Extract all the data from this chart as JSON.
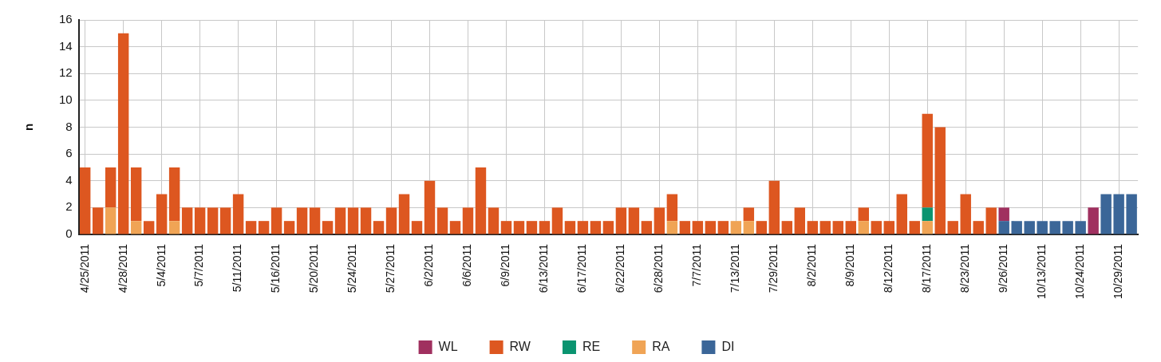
{
  "chart_data": {
    "type": "bar",
    "stacked": true,
    "ylabel": "n",
    "ylim": [
      0,
      16
    ],
    "yticks": [
      0,
      2,
      4,
      6,
      8,
      10,
      12,
      14,
      16
    ],
    "grid": true,
    "legend": "bottom",
    "categories": [
      "4/25/2011",
      null,
      null,
      "4/28/2011",
      null,
      null,
      "5/4/2011",
      null,
      null,
      "5/7/2011",
      null,
      null,
      "5/11/2011",
      null,
      null,
      "5/16/2011",
      null,
      null,
      "5/20/2011",
      null,
      null,
      "5/24/2011",
      null,
      null,
      "5/27/2011",
      null,
      null,
      "6/2/2011",
      null,
      null,
      "6/6/2011",
      null,
      null,
      "6/9/2011",
      null,
      null,
      "6/13/2011",
      null,
      null,
      "6/17/2011",
      null,
      null,
      "6/22/2011",
      null,
      null,
      "6/28/2011",
      null,
      null,
      "7/7/2011",
      null,
      null,
      "7/13/2011",
      null,
      null,
      "7/29/2011",
      null,
      null,
      "8/2/2011",
      null,
      null,
      "8/9/2011",
      null,
      null,
      "8/12/2011",
      null,
      null,
      "8/17/2011",
      null,
      null,
      "8/23/2011",
      null,
      null,
      "9/26/2011",
      null,
      null,
      "10/13/2011",
      null,
      null,
      "10/24/2011",
      null,
      null,
      "10/29/2011",
      null
    ],
    "series": [
      {
        "name": "DI",
        "color": "#3b6698",
        "values": [
          null,
          null,
          null,
          null,
          null,
          null,
          null,
          null,
          null,
          null,
          null,
          null,
          null,
          null,
          null,
          null,
          null,
          null,
          null,
          null,
          null,
          null,
          null,
          null,
          null,
          null,
          null,
          null,
          null,
          null,
          null,
          null,
          null,
          null,
          null,
          null,
          null,
          null,
          null,
          null,
          null,
          null,
          null,
          null,
          null,
          null,
          null,
          null,
          null,
          null,
          null,
          null,
          null,
          null,
          null,
          null,
          null,
          null,
          null,
          null,
          null,
          null,
          null,
          null,
          null,
          null,
          null,
          null,
          null,
          null,
          null,
          null,
          1,
          1,
          1,
          1,
          1,
          1,
          1,
          null,
          3,
          3,
          3
        ]
      },
      {
        "name": "RA",
        "color": "#f0a455",
        "values": [
          null,
          null,
          2,
          null,
          1,
          null,
          null,
          1,
          null,
          null,
          null,
          null,
          null,
          null,
          null,
          null,
          null,
          null,
          null,
          null,
          null,
          null,
          null,
          null,
          null,
          null,
          null,
          null,
          null,
          null,
          null,
          null,
          null,
          null,
          null,
          null,
          null,
          null,
          null,
          null,
          null,
          null,
          null,
          null,
          null,
          null,
          1,
          null,
          null,
          null,
          null,
          1,
          1,
          null,
          null,
          null,
          null,
          null,
          null,
          null,
          null,
          1,
          null,
          null,
          null,
          null,
          1,
          null,
          null,
          null,
          null,
          null,
          null,
          null,
          null,
          null,
          null,
          null,
          null,
          null,
          null,
          null,
          null
        ]
      },
      {
        "name": "RE",
        "color": "#0a9470",
        "values": [
          null,
          null,
          null,
          null,
          null,
          null,
          null,
          null,
          null,
          null,
          null,
          null,
          null,
          null,
          null,
          null,
          null,
          null,
          null,
          null,
          null,
          null,
          null,
          null,
          null,
          null,
          null,
          null,
          null,
          null,
          null,
          null,
          null,
          null,
          null,
          null,
          null,
          null,
          null,
          null,
          null,
          null,
          null,
          null,
          null,
          null,
          null,
          null,
          null,
          null,
          null,
          null,
          null,
          null,
          null,
          null,
          null,
          null,
          null,
          null,
          null,
          null,
          null,
          null,
          null,
          null,
          1,
          null,
          null,
          null,
          null,
          null,
          null,
          null,
          null,
          null,
          null,
          null,
          null,
          null,
          null,
          null,
          null
        ]
      },
      {
        "name": "RW",
        "color": "#dd5720",
        "values": [
          5,
          2,
          3,
          15,
          4,
          1,
          3,
          4,
          2,
          2,
          2,
          2,
          3,
          1,
          1,
          2,
          1,
          2,
          2,
          1,
          2,
          2,
          2,
          1,
          2,
          3,
          1,
          4,
          2,
          1,
          2,
          5,
          2,
          1,
          1,
          1,
          1,
          2,
          1,
          1,
          1,
          1,
          2,
          2,
          1,
          2,
          2,
          1,
          1,
          1,
          1,
          null,
          1,
          1,
          4,
          1,
          2,
          1,
          1,
          1,
          1,
          1,
          1,
          1,
          3,
          1,
          7,
          8,
          1,
          3,
          1,
          2,
          null,
          null,
          null,
          null,
          null,
          null,
          null,
          null,
          null,
          null,
          null
        ]
      },
      {
        "name": "WL",
        "color": "#a0305f",
        "values": [
          null,
          null,
          null,
          null,
          null,
          null,
          null,
          null,
          null,
          null,
          null,
          null,
          null,
          null,
          null,
          null,
          null,
          null,
          null,
          null,
          null,
          null,
          null,
          null,
          null,
          null,
          null,
          null,
          null,
          null,
          null,
          null,
          null,
          null,
          null,
          null,
          null,
          null,
          null,
          null,
          null,
          null,
          null,
          null,
          null,
          null,
          null,
          null,
          null,
          null,
          null,
          null,
          null,
          null,
          null,
          null,
          null,
          null,
          null,
          null,
          null,
          null,
          null,
          null,
          null,
          null,
          null,
          null,
          null,
          null,
          null,
          null,
          1,
          null,
          null,
          null,
          null,
          null,
          null,
          2,
          null,
          null,
          null
        ]
      }
    ]
  }
}
